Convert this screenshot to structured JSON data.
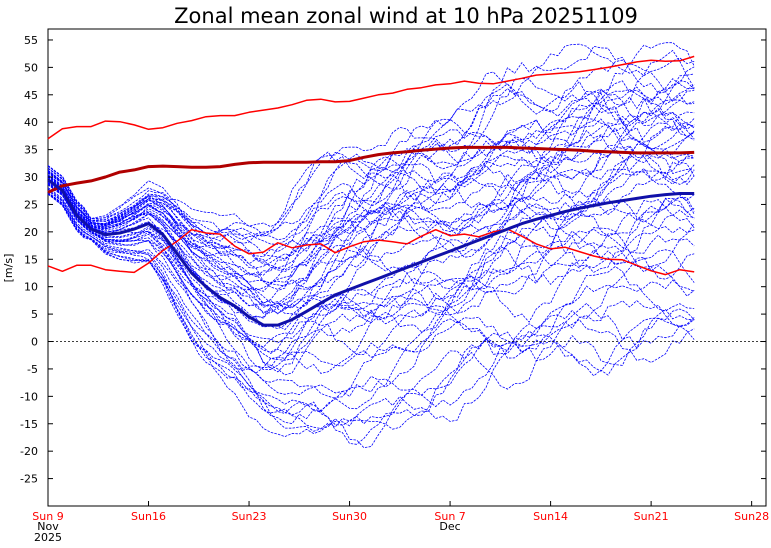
{
  "chart_data": {
    "type": "line",
    "title": "Zonal mean zonal wind at 10 hPa 20251109",
    "ylabel": "[m/s]",
    "xlabel": "",
    "ylim": [
      -30,
      57
    ],
    "xlim": [
      0,
      50
    ],
    "x_unit": "days since 2025-11-09",
    "y_ticks": [
      -25,
      -20,
      -15,
      -10,
      -5,
      0,
      5,
      10,
      15,
      20,
      25,
      30,
      35,
      40,
      45,
      50,
      55
    ],
    "x_ticks": [
      {
        "day": 0,
        "label": "Sun 9"
      },
      {
        "day": 7,
        "label": "Sun16"
      },
      {
        "day": 14,
        "label": "Sun23"
      },
      {
        "day": 21,
        "label": "Sun30"
      },
      {
        "day": 28,
        "label": "Sun 7"
      },
      {
        "day": 35,
        "label": "Sun14"
      },
      {
        "day": 42,
        "label": "Sun21"
      },
      {
        "day": 49,
        "label": "Sun28"
      }
    ],
    "x_sublabels": [
      {
        "day": 0,
        "lines": [
          "Nov",
          "2025"
        ]
      },
      {
        "day": 28,
        "lines": [
          "Dec"
        ]
      }
    ],
    "colors": {
      "ensemble": "#0000ff",
      "mean": "#1010a8",
      "climatology": "#ff0000",
      "climatology_mean": "#b00000",
      "zero_line": "#000000"
    },
    "ensemble_members": 50,
    "series": [
      {
        "name": "Climatology upper",
        "color": "#ff0000",
        "x": [
          0,
          1,
          2,
          3,
          4,
          5,
          6,
          7,
          8,
          9,
          10,
          11,
          12,
          13,
          14,
          15,
          16,
          17,
          18,
          19,
          20,
          21,
          22,
          23,
          24,
          25,
          26,
          27,
          28,
          29,
          30,
          31,
          32,
          33,
          34,
          35,
          36,
          37,
          38,
          39,
          40,
          41,
          42,
          43,
          44,
          45
        ],
        "values": [
          37,
          38.8,
          39.2,
          39.2,
          40.2,
          40.1,
          39.5,
          38.7,
          39,
          39.8,
          40.3,
          41,
          41.2,
          41.2,
          41.8,
          42.2,
          42.6,
          43.2,
          44,
          44.2,
          43.7,
          43.8,
          44.4,
          45,
          45.3,
          46,
          46.3,
          46.8,
          47,
          47.5,
          47.1,
          47,
          47.5,
          48,
          48.6,
          48.8,
          49,
          49.2,
          49.6,
          50,
          50.5,
          51,
          51.3,
          51.1,
          51.2,
          52
        ]
      },
      {
        "name": "Climatology mean",
        "color": "#b00000",
        "x": [
          0,
          1,
          2,
          3,
          4,
          5,
          6,
          7,
          8,
          9,
          10,
          11,
          12,
          13,
          14,
          15,
          16,
          17,
          18,
          19,
          20,
          21,
          22,
          23,
          24,
          25,
          26,
          27,
          28,
          29,
          30,
          31,
          32,
          33,
          34,
          35,
          36,
          37,
          38,
          39,
          40,
          41,
          42,
          43,
          44,
          45
        ],
        "values": [
          27.2,
          28.4,
          28.9,
          29.3,
          30,
          30.9,
          31.3,
          31.9,
          32,
          31.9,
          31.8,
          31.8,
          31.9,
          32.3,
          32.6,
          32.7,
          32.7,
          32.7,
          32.7,
          32.8,
          32.8,
          33,
          33.6,
          34.1,
          34.4,
          34.6,
          34.9,
          35.1,
          35.3,
          35.4,
          35.4,
          35.4,
          35.4,
          35.3,
          35.2,
          35.1,
          35,
          34.9,
          34.7,
          34.6,
          34.5,
          34.4,
          34.4,
          34.4,
          34.4,
          34.5
        ]
      },
      {
        "name": "Climatology lower",
        "color": "#ff0000",
        "x": [
          0,
          1,
          2,
          3,
          4,
          5,
          6,
          7,
          8,
          9,
          10,
          11,
          12,
          13,
          14,
          15,
          16,
          17,
          18,
          19,
          20,
          21,
          22,
          23,
          24,
          25,
          26,
          27,
          28,
          29,
          30,
          31,
          32,
          33,
          34,
          35,
          36,
          37,
          38,
          39,
          40,
          41,
          42,
          43,
          44,
          45
        ],
        "values": [
          13.8,
          12.8,
          13.9,
          13.9,
          13.1,
          12.8,
          12.6,
          14.3,
          16.6,
          18.3,
          20.4,
          19.8,
          19.6,
          17.4,
          16,
          16.3,
          18,
          17.1,
          17.6,
          17.8,
          16.2,
          17.3,
          18.2,
          18.5,
          18.2,
          17.8,
          19.2,
          20.4,
          19.3,
          19.6,
          19.1,
          20,
          20.5,
          19.2,
          17.8,
          16.9,
          17.2,
          16.4,
          15.6,
          15,
          14.9,
          13.9,
          12.9,
          12.2,
          13.1,
          12.7
        ]
      },
      {
        "name": "Ensemble mean",
        "color": "#1010a8",
        "x": [
          0,
          1,
          2,
          3,
          4,
          5,
          6,
          7,
          8,
          9,
          10,
          11,
          12,
          13,
          14,
          15,
          16,
          17,
          18,
          19,
          20,
          21,
          22,
          23,
          24,
          25,
          26,
          27,
          28,
          29,
          30,
          31,
          32,
          33,
          34,
          35,
          36,
          37,
          38,
          39,
          40,
          41,
          42,
          43,
          44,
          45
        ],
        "values": [
          29.5,
          27.5,
          23,
          20.5,
          19.5,
          19.8,
          20.5,
          21.5,
          19.5,
          16,
          12.5,
          10,
          8,
          6.5,
          4.5,
          3,
          3,
          4,
          5.5,
          7,
          8.5,
          9.5,
          10.5,
          11.5,
          12.5,
          13.5,
          14.5,
          15.5,
          16.5,
          17.5,
          18.5,
          19.5,
          20.5,
          21.5,
          22.3,
          23,
          23.7,
          24.3,
          24.8,
          25.3,
          25.7,
          26.1,
          26.5,
          26.8,
          27,
          27
        ]
      }
    ]
  }
}
